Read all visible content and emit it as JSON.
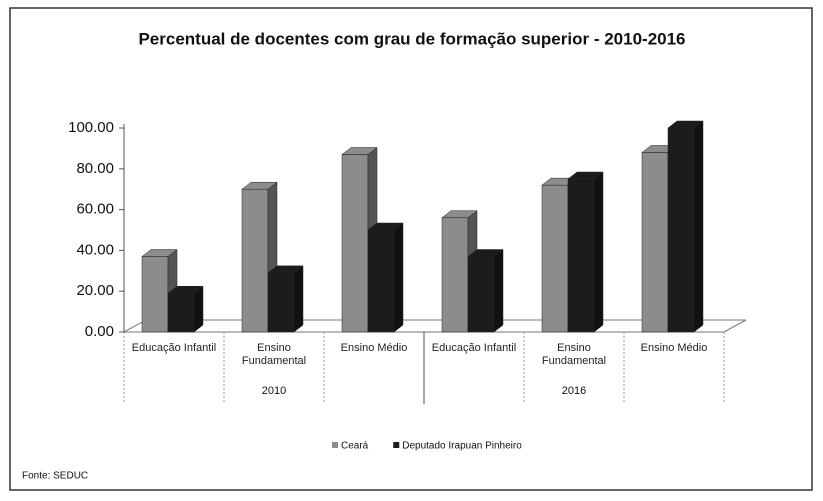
{
  "chart_data": {
    "type": "bar3d",
    "title": "Percentual de docentes com grau de formação superior - 2010-2016",
    "categories": [
      "Educação Infantil",
      "Ensino Fundamental",
      "Ensino Médio",
      "Educação Infantil",
      "Ensino Fundamental",
      "Ensino Médio"
    ],
    "groups": [
      "2010",
      "2016"
    ],
    "series": [
      {
        "name": "Ceará",
        "color": "#8c8c8c",
        "values": [
          37,
          70,
          87,
          56,
          72,
          88
        ]
      },
      {
        "name": "Deputado Irapuan Pinheiro",
        "color": "#1c1c1c",
        "values": [
          19,
          29,
          50,
          37,
          75,
          100
        ]
      }
    ],
    "ylim": [
      0,
      100
    ],
    "yticks": [
      {
        "value": 0,
        "label": "0.00"
      },
      {
        "value": 20,
        "label": "20.00"
      },
      {
        "value": 40,
        "label": "40.00"
      },
      {
        "value": 60,
        "label": "60.00"
      },
      {
        "value": 80,
        "label": "80.00"
      },
      {
        "value": 100,
        "label": "100.00"
      }
    ],
    "legend": "bottom",
    "source": "Fonte: SEDUC"
  }
}
